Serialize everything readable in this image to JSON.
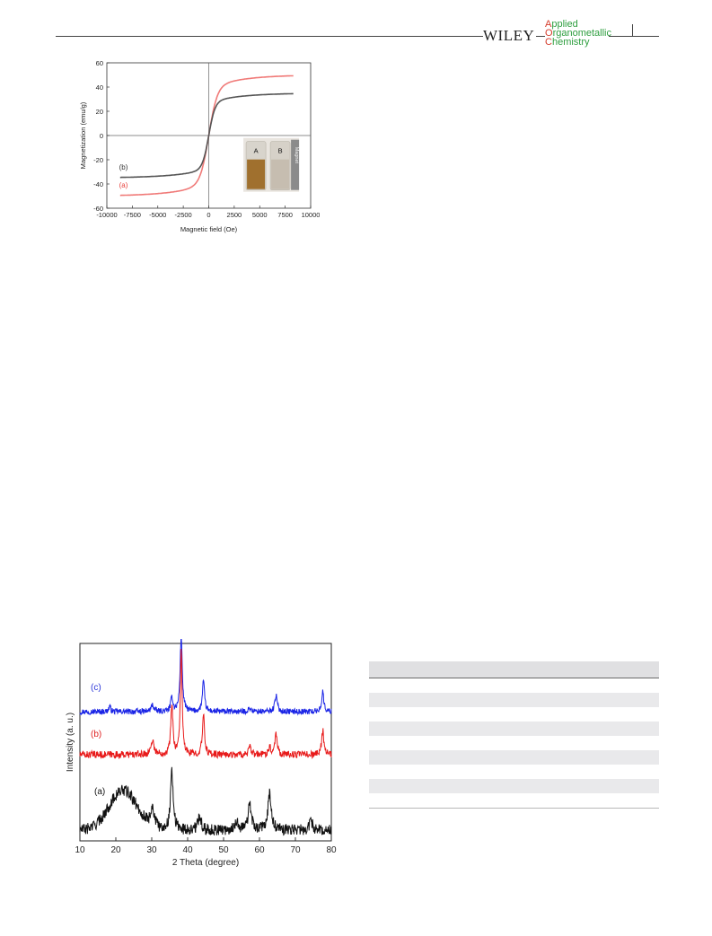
{
  "header": {
    "publisher": "WILEY",
    "journal_lines": [
      {
        "cap": "A",
        "rest": "pplied"
      },
      {
        "cap": "O",
        "rest": "rganometallic"
      },
      {
        "cap": "C",
        "rest": "hemistry"
      }
    ]
  },
  "figures": {
    "magnetization": {
      "inset_labels": {
        "a": "A",
        "b": "B",
        "magnet": "Magnet"
      }
    }
  },
  "chart_data": [
    {
      "type": "line",
      "title": "",
      "xlabel": "Magnetic field (Oe)",
      "ylabel": "Magnetization (emu/g)",
      "xlim": [
        -10000,
        10000
      ],
      "ylim": [
        -60,
        60
      ],
      "xticks": [
        -10000,
        -7500,
        -5000,
        -2500,
        0,
        2500,
        5000,
        7500,
        10000
      ],
      "yticks": [
        -60,
        -40,
        -20,
        0,
        20,
        40,
        60
      ],
      "grid": false,
      "curve_labels": [
        {
          "name": "(b)",
          "color": "#333333",
          "x": -8800,
          "y": -28
        },
        {
          "name": "(a)",
          "color": "#e8403c",
          "x": -8800,
          "y": -43
        }
      ],
      "series": [
        {
          "name": "(a)",
          "color": "#f07a78",
          "ms": 50,
          "h0": 800,
          "xmin": -8700,
          "xmax": 8300
        },
        {
          "name": "(b)",
          "color": "#555555",
          "ms": 35,
          "h0": 600,
          "xmin": -8700,
          "xmax": 8300
        }
      ]
    },
    {
      "type": "line",
      "title": "",
      "xlabel": "2 Theta (degree)",
      "ylabel": "Intensity (a. u.)",
      "xlim": [
        10,
        80
      ],
      "xticks": [
        10,
        20,
        30,
        40,
        50,
        60,
        70,
        80
      ],
      "grid": false,
      "curve_labels": [
        {
          "name": "(c)",
          "color": "#2a35d8",
          "x": 13,
          "y": 84
        },
        {
          "name": "(b)",
          "color": "#e02020",
          "x": 13,
          "y": 58
        },
        {
          "name": "(a)",
          "color": "#111111",
          "x": 14,
          "y": 26
        }
      ],
      "series": [
        {
          "name": "(c)",
          "color": "#1a24e6",
          "baseline": 72,
          "noise": 1.6,
          "peaks": [
            [
              18.3,
              3,
              0.3
            ],
            [
              30.2,
              4,
              0.4
            ],
            [
              35.6,
              8,
              0.35
            ],
            [
              38.2,
              42,
              0.35
            ],
            [
              44.4,
              17,
              0.35
            ],
            [
              57.3,
              2,
              0.4
            ],
            [
              64.6,
              9,
              0.4
            ],
            [
              77.6,
              11,
              0.35
            ]
          ]
        },
        {
          "name": "(b)",
          "color": "#e81a1a",
          "baseline": 48,
          "noise": 2.0,
          "peaks": [
            [
              30.2,
              8,
              0.5
            ],
            [
              35.6,
              28,
              0.35
            ],
            [
              38.2,
              58,
              0.3
            ],
            [
              44.4,
              22,
              0.35
            ],
            [
              57.3,
              4,
              0.4
            ],
            [
              62.8,
              4,
              0.4
            ],
            [
              64.6,
              12,
              0.4
            ],
            [
              77.6,
              14,
              0.35
            ]
          ]
        },
        {
          "name": "(a)",
          "color": "#111111",
          "baseline": 6,
          "noise": 3.2,
          "humps": [
            [
              22,
              22,
              5.5
            ]
          ],
          "peaks": [
            [
              30.2,
              11,
              0.6
            ],
            [
              35.6,
              33,
              0.45
            ],
            [
              43.3,
              8,
              0.5
            ],
            [
              53.6,
              5,
              0.5
            ],
            [
              57.3,
              14,
              0.55
            ],
            [
              62.8,
              20,
              0.55
            ],
            [
              74.4,
              5,
              0.5
            ]
          ]
        }
      ]
    }
  ]
}
